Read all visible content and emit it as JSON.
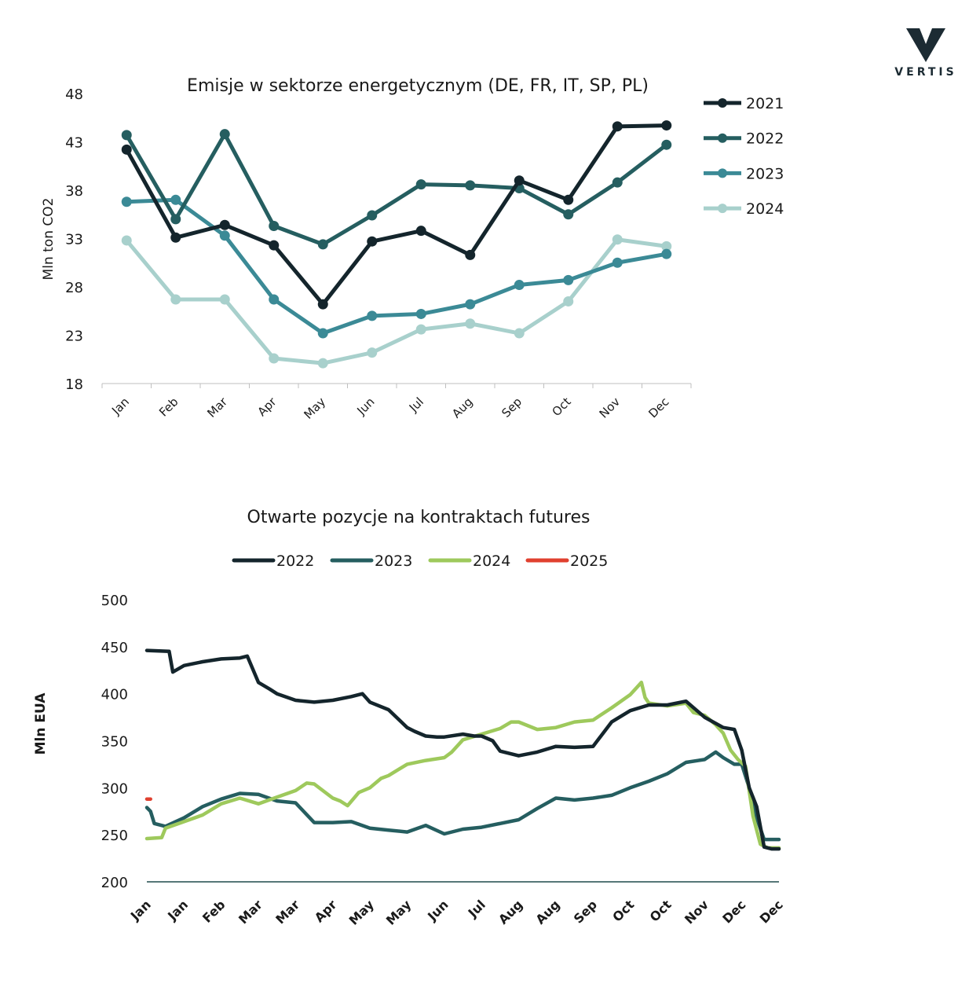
{
  "brand": {
    "name": "VERTIS",
    "color": "#1c2b33"
  },
  "chart_data": [
    {
      "type": "line",
      "title": "Emisje w sektorze energetycznym (DE, FR, IT, SP, PL)",
      "xlabel": "",
      "ylabel": "Mln ton CO2",
      "ylim": [
        18,
        48
      ],
      "yticks": [
        48,
        43,
        38,
        33,
        28,
        23,
        18
      ],
      "categories": [
        "Jan",
        "Feb",
        "Mar",
        "Apr",
        "May",
        "Jun",
        "Jul",
        "Aug",
        "Sep",
        "Oct",
        "Nov",
        "Dec"
      ],
      "grid": false,
      "legend_position": "right",
      "series": [
        {
          "name": "2021",
          "color": "#14252c",
          "values": [
            42.2,
            33.1,
            34.4,
            32.3,
            26.2,
            32.7,
            33.8,
            31.3,
            39.0,
            37.0,
            44.6,
            44.7
          ]
        },
        {
          "name": "2022",
          "color": "#255e60",
          "values": [
            43.7,
            35.0,
            43.8,
            34.3,
            32.4,
            35.4,
            38.6,
            38.5,
            38.2,
            35.5,
            38.8,
            42.7
          ]
        },
        {
          "name": "2023",
          "color": "#3b8a96",
          "values": [
            36.8,
            37.0,
            33.3,
            26.7,
            23.2,
            25.0,
            25.2,
            26.2,
            28.2,
            28.7,
            30.5,
            31.4
          ]
        },
        {
          "name": "2024",
          "color": "#a8d0cc",
          "values": [
            32.8,
            26.7,
            26.7,
            20.6,
            20.1,
            21.2,
            23.6,
            24.2,
            23.2,
            26.5,
            32.9,
            32.2
          ]
        }
      ]
    },
    {
      "type": "line",
      "title": "Otwarte pozycje na kontraktach futures",
      "xlabel": "",
      "ylabel": "Mln EUA",
      "ylim": [
        200,
        500
      ],
      "yticks": [
        500,
        450,
        400,
        350,
        300,
        250,
        200
      ],
      "categories": [
        "Jan",
        "Jan",
        "Feb",
        "Mar",
        "Mar",
        "Apr",
        "May",
        "May",
        "Jun",
        "Jul",
        "Aug",
        "Aug",
        "Sep",
        "Oct",
        "Oct",
        "Nov",
        "Dec",
        "Dec"
      ],
      "x_range": [
        0,
        17
      ],
      "grid": false,
      "legend_position": "top",
      "series": [
        {
          "name": "2022",
          "color": "#14252c",
          "x": [
            0,
            0.6,
            0.7,
            1,
            1.5,
            2,
            2.5,
            2.7,
            3,
            3.3,
            3.5,
            4,
            4.5,
            5,
            5.5,
            5.8,
            6,
            6.5,
            7,
            7.2,
            7.5,
            7.8,
            8,
            8.5,
            8.8,
            9,
            9.3,
            9.5,
            10,
            10.5,
            11,
            11.5,
            12,
            12.5,
            13,
            13.5,
            14,
            14.5,
            15,
            15.5,
            15.8,
            16,
            16.2,
            16.4,
            16.6,
            16.8,
            17
          ],
          "values": [
            446,
            445,
            423,
            430,
            434,
            437,
            438,
            440,
            412,
            405,
            400,
            393,
            391,
            393,
            397,
            400,
            391,
            383,
            364,
            360,
            355,
            354,
            354,
            357,
            355,
            355,
            350,
            339,
            334,
            338,
            344,
            343,
            344,
            370,
            382,
            388,
            388,
            392,
            375,
            364,
            362,
            340,
            300,
            280,
            237,
            235,
            235
          ]
        },
        {
          "name": "2023",
          "color": "#255e60",
          "x": [
            0,
            0.1,
            0.2,
            0.5,
            1,
            1.5,
            2,
            2.5,
            3,
            3.5,
            4,
            4.5,
            5,
            5.5,
            6,
            6.5,
            7,
            7.5,
            8,
            8.5,
            9,
            9.5,
            10,
            10.5,
            11,
            11.5,
            12,
            12.5,
            13,
            13.5,
            14,
            14.5,
            15,
            15.3,
            15.5,
            15.8,
            16,
            16.2,
            16.4,
            16.6,
            16.8,
            17
          ],
          "values": [
            279,
            275,
            262,
            259,
            268,
            280,
            288,
            294,
            293,
            286,
            284,
            263,
            263,
            264,
            257,
            255,
            253,
            260,
            251,
            256,
            258,
            262,
            266,
            278,
            289,
            287,
            289,
            292,
            300,
            307,
            315,
            327,
            330,
            338,
            332,
            325,
            325,
            300,
            268,
            245,
            245,
            245
          ]
        },
        {
          "name": "2024",
          "color": "#9ec95c",
          "x": [
            0,
            0.4,
            0.5,
            1,
            1.5,
            2,
            2.5,
            3,
            3.5,
            4,
            4.3,
            4.5,
            5,
            5.2,
            5.4,
            5.7,
            6,
            6.3,
            6.5,
            7,
            7.5,
            8,
            8.2,
            8.5,
            9,
            9.5,
            9.8,
            10,
            10.5,
            11,
            11.5,
            12,
            12.5,
            13,
            13.3,
            13.4,
            13.5,
            14,
            14.5,
            14.7,
            15,
            15.3,
            15.5,
            15.7,
            15.9,
            16.1,
            16.3,
            16.5,
            16.7,
            17
          ],
          "values": [
            246,
            247,
            257,
            264,
            271,
            283,
            289,
            283,
            290,
            297,
            305,
            304,
            289,
            286,
            281,
            295,
            300,
            310,
            313,
            325,
            329,
            332,
            338,
            351,
            357,
            363,
            370,
            370,
            362,
            364,
            370,
            372,
            385,
            399,
            412,
            396,
            390,
            387,
            390,
            380,
            377,
            367,
            358,
            340,
            330,
            323,
            270,
            240,
            236,
            236
          ]
        },
        {
          "name": "2025",
          "color": "#e0402f",
          "x": [
            0,
            0.1
          ],
          "values": [
            288,
            288
          ]
        }
      ]
    }
  ]
}
